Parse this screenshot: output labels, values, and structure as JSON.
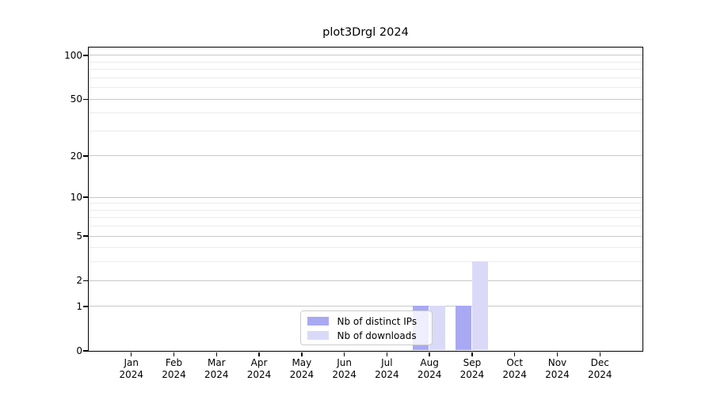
{
  "title": "plot3Drgl 2024",
  "chart_data": {
    "type": "bar",
    "title": "plot3Drgl 2024",
    "categories": [
      "Jan",
      "Feb",
      "Mar",
      "Apr",
      "May",
      "Jun",
      "Jul",
      "Aug",
      "Sep",
      "Oct",
      "Nov",
      "Dec"
    ],
    "year_label": "2024",
    "series": [
      {
        "name": "Nb of distinct IPs",
        "color": "#a9a9f3",
        "values": [
          0,
          0,
          0,
          0,
          0,
          0,
          0,
          1,
          1,
          0,
          0,
          0
        ]
      },
      {
        "name": "Nb of downloads",
        "color": "#dadaf8",
        "values": [
          0,
          0,
          0,
          0,
          0,
          0,
          0,
          1,
          3,
          0,
          0,
          0
        ]
      }
    ],
    "xlabel": "",
    "ylabel": "",
    "yscale": "log1p",
    "ylim": [
      0,
      113.3
    ],
    "yticks": [
      0,
      1,
      2,
      5,
      10,
      20,
      50,
      100
    ],
    "minor_yticks": [
      3,
      4,
      6,
      7,
      8,
      9,
      30,
      40,
      60,
      70,
      80,
      90
    ],
    "grid": true,
    "legend_position": "lower center",
    "colors": {
      "major_grid": "#c8c8c8",
      "minor_grid": "#ececec",
      "spine": "#000000",
      "text": "#000000",
      "legend_border": "#cccccc",
      "legend_bg": "rgba(255,255,255,0.8)"
    }
  }
}
